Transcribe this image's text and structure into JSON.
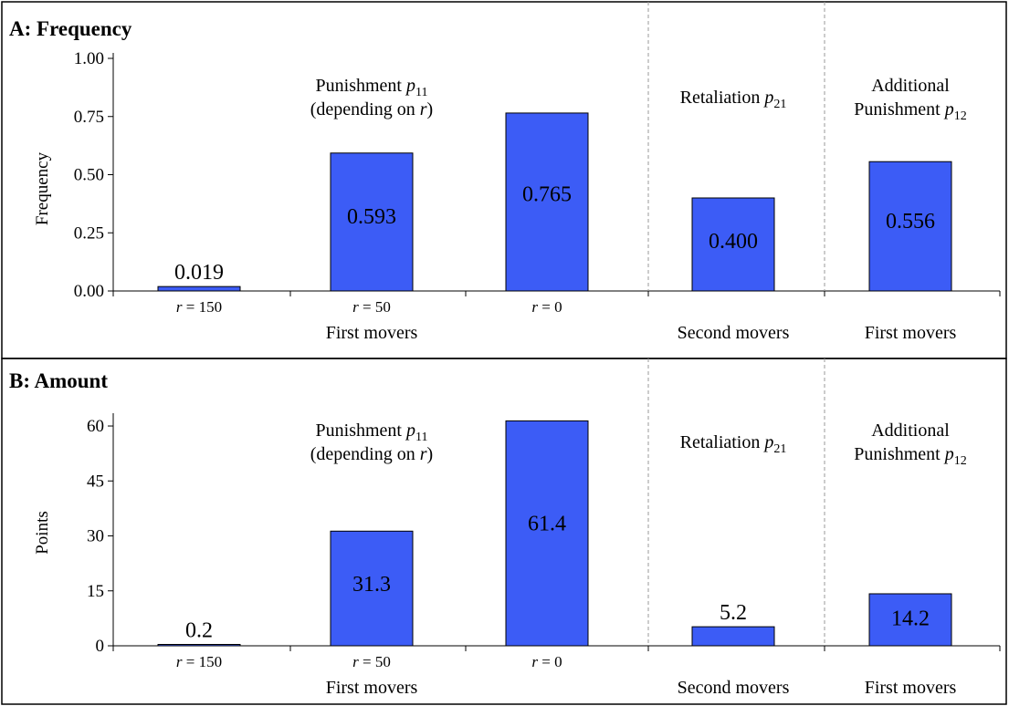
{
  "chart_data": [
    {
      "type": "bar",
      "title": "A: Frequency",
      "ylabel": "Frequency",
      "ylim": [
        0,
        1
      ],
      "yticks": [
        "0.00",
        "0.25",
        "0.50",
        "0.75",
        "1.00"
      ],
      "ytick_values": [
        0,
        0.25,
        0.5,
        0.75,
        1
      ],
      "categories": [
        "r = 150",
        "r = 50",
        "r = 0",
        "",
        ""
      ],
      "values": [
        0.019,
        0.593,
        0.765,
        0.4,
        0.556
      ],
      "value_labels": [
        "0.019",
        "0.593",
        "0.765",
        "0.400",
        "0.556"
      ],
      "label_inside": [
        false,
        true,
        true,
        true,
        true
      ],
      "group_labels": [
        "First movers",
        "Second movers",
        "First movers"
      ],
      "annotations": {
        "punishment": [
          "Punishment ",
          "p",
          "11",
          "(depending on ",
          "r",
          ")"
        ],
        "retaliation": [
          "Retaliation ",
          "p",
          "21"
        ],
        "additional": [
          "Additional",
          "Punishment ",
          "p",
          "12"
        ]
      },
      "grid": false
    },
    {
      "type": "bar",
      "title": "B: Amount",
      "ylabel": "Points",
      "ylim": [
        0,
        62
      ],
      "yticks": [
        "0",
        "15",
        "30",
        "45",
        "60"
      ],
      "ytick_values": [
        0,
        15,
        30,
        45,
        60
      ],
      "categories": [
        "r = 150",
        "r = 50",
        "r = 0",
        "",
        ""
      ],
      "values": [
        0.2,
        31.3,
        61.4,
        5.2,
        14.2
      ],
      "value_labels": [
        "0.2",
        "31.3",
        "61.4",
        "5.2",
        "14.2"
      ],
      "label_inside": [
        false,
        true,
        true,
        false,
        true
      ],
      "group_labels": [
        "First movers",
        "Second movers",
        "First movers"
      ],
      "annotations": {
        "punishment": [
          "Punishment ",
          "p",
          "11",
          "(depending on ",
          "r",
          ")"
        ],
        "retaliation": [
          "Retaliation ",
          "p",
          "21"
        ],
        "additional": [
          "Additional",
          "Punishment ",
          "p",
          "12"
        ]
      },
      "grid": false
    }
  ],
  "colors": {
    "bar": "#3c5cf6",
    "outline": "#000000",
    "divider": "#999999"
  }
}
